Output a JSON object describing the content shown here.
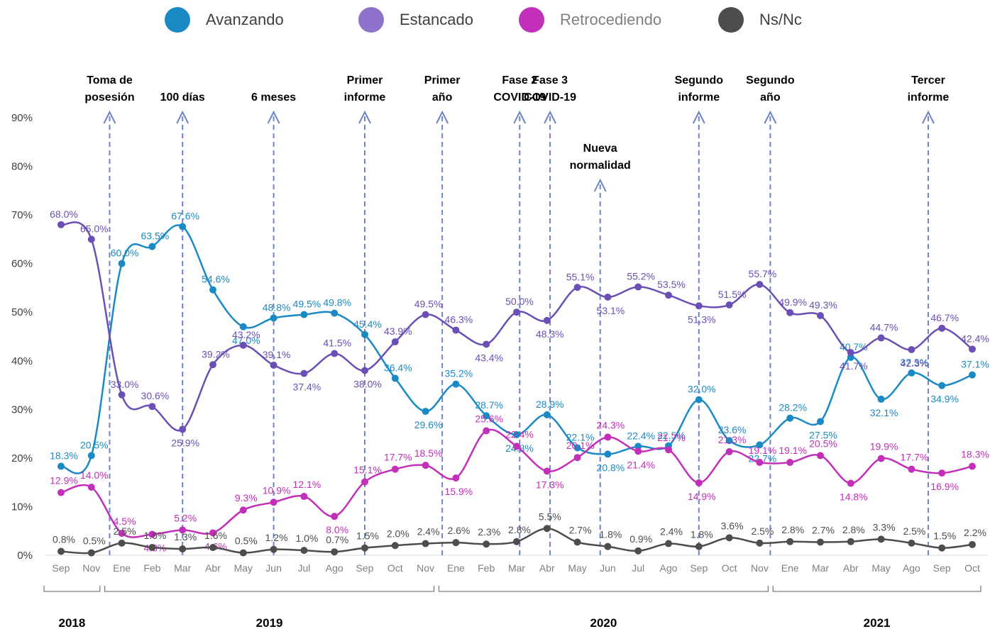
{
  "chart_data": {
    "type": "line",
    "x": [
      "Sep",
      "Nov",
      "Ene",
      "Feb",
      "Mar",
      "Abr",
      "May",
      "Jun",
      "Jul",
      "Ago",
      "Sep",
      "Oct",
      "Nov",
      "Ene",
      "Feb",
      "Mar",
      "Abr",
      "May",
      "Jun",
      "Jul",
      "Ago",
      "Sep",
      "Oct",
      "Nov",
      "Ene",
      "Mar",
      "Abr",
      "May",
      "Ago",
      "Sep",
      "Oct"
    ],
    "years": [
      {
        "label": "2018",
        "from": 0,
        "to": 1
      },
      {
        "label": "2019",
        "from": 2,
        "to": 12
      },
      {
        "label": "2020",
        "from": 13,
        "to": 23
      },
      {
        "label": "2021",
        "from": 24,
        "to": 30
      }
    ],
    "ylim": [
      0,
      90
    ],
    "yticks": [
      "0%",
      "10%",
      "20%",
      "30%",
      "40%",
      "50%",
      "60%",
      "70%",
      "80%",
      "90%"
    ],
    "series": [
      {
        "name": "Avanzando",
        "color": "#1b8ac4",
        "values": [
          18.3,
          20.5,
          60.0,
          63.5,
          67.6,
          54.6,
          47.0,
          48.8,
          49.5,
          49.8,
          45.4,
          36.4,
          29.6,
          35.2,
          28.7,
          24.8,
          28.9,
          22.1,
          20.8,
          22.4,
          22.5,
          32.0,
          23.6,
          22.7,
          28.2,
          27.5,
          40.7,
          32.1,
          37.5,
          34.9,
          37.1
        ],
        "labels": [
          "18.3%",
          "20.5%",
          "60.0%",
          "63.5%",
          "67.6%",
          "54.6%",
          "47.0%",
          "48.8%",
          "49.5%",
          "49.8%",
          "45.4%",
          "36.4%",
          "29.6%",
          "35.2%",
          "28.7%",
          "24.8%",
          "28.9%",
          "22.1%",
          "20.8%",
          "22.4%",
          "22.5%",
          "32.0%",
          "23.6%",
          "22.7%",
          "28.2%",
          "27.5%",
          "40.7%",
          "32.1%",
          "37.5%",
          "34.9%",
          "37.1%"
        ]
      },
      {
        "name": "Estancado",
        "color": "#6b4fb5",
        "values": [
          68.0,
          65.0,
          33.0,
          30.6,
          25.9,
          39.2,
          43.2,
          39.1,
          37.4,
          41.5,
          38.0,
          43.9,
          49.5,
          46.3,
          43.4,
          50.0,
          48.3,
          55.1,
          53.1,
          55.2,
          53.5,
          51.3,
          51.5,
          55.7,
          49.9,
          49.3,
          41.7,
          44.7,
          42.3,
          46.7,
          42.4
        ],
        "labels": [
          "68.0%",
          "65.0%",
          "33.0%",
          "30.6%",
          "25.9%",
          "39.2%",
          "43.2%",
          "39.1%",
          "37.4%",
          "41.5%",
          "38.0%",
          "43.9%",
          "49.5%",
          "46.3%",
          "43.4%",
          "50.0%",
          "48.3%",
          "55.1%",
          "53.1%",
          "55.2%",
          "53.5%",
          "51.3%",
          "51.5%",
          "55.7%",
          "49.9%",
          "49.3%",
          "41.7%",
          "44.7%",
          "42.3%",
          "46.7%",
          "42.4%"
        ]
      },
      {
        "name": "Retrocediendo",
        "color": "#c22fb8",
        "values": [
          12.9,
          14.0,
          4.5,
          4.3,
          5.2,
          4.6,
          9.3,
          10.9,
          12.1,
          8.0,
          15.1,
          17.7,
          18.5,
          15.9,
          25.6,
          22.4,
          17.3,
          20.1,
          24.3,
          21.4,
          21.7,
          14.9,
          21.3,
          19.1,
          19.1,
          20.5,
          14.8,
          19.9,
          17.7,
          16.9,
          18.3
        ],
        "labels": [
          "12.9%",
          "14.0%",
          "4.5%",
          "4.3%",
          "5.2%",
          "4.6%",
          "9.3%",
          "10.9%",
          "12.1%",
          "8.0%",
          "15.1%",
          "17.7%",
          "18.5%",
          "15.9%",
          "25.6%",
          "22.4%",
          "17.3%",
          "20.1%",
          "24.3%",
          "21.4%",
          "21.7%",
          "14.9%",
          "21.3%",
          "19.1%",
          "19.1%",
          "20.5%",
          "14.8%",
          "19.9%",
          "17.7%",
          "16.9%",
          "18.3%"
        ]
      },
      {
        "name": "Ns/Nc",
        "color": "#4d4d4d",
        "values": [
          0.8,
          0.5,
          2.5,
          1.6,
          1.3,
          1.6,
          0.5,
          1.2,
          1.0,
          0.7,
          1.5,
          2.0,
          2.4,
          2.6,
          2.3,
          2.8,
          5.5,
          2.7,
          1.8,
          0.9,
          2.4,
          1.8,
          3.6,
          2.5,
          2.8,
          2.7,
          2.8,
          3.3,
          2.5,
          1.5,
          2.2
        ],
        "labels": [
          "0.8%",
          "0.5%",
          "2.5%",
          "1.6%",
          "1.3%",
          "1.6%",
          "0.5%",
          "1.2%",
          "1.0%",
          "0.7%",
          "1.5%",
          "2.0%",
          "2.4%",
          "2.6%",
          "2.3%",
          "2.8%",
          "5.5%",
          "2.7%",
          "1.8%",
          "0.9%",
          "2.4%",
          "1.8%",
          "3.6%",
          "2.5%",
          "2.8%",
          "2.7%",
          "2.8%",
          "3.3%",
          "2.5%",
          "1.5%",
          "2.2%"
        ]
      }
    ],
    "events": [
      {
        "lines": [
          "Toma de",
          "posesión"
        ],
        "at": 1.6,
        "top": 90
      },
      {
        "lines": [
          "100 días"
        ],
        "at": 4.0,
        "top": 90
      },
      {
        "lines": [
          "6 meses"
        ],
        "at": 7.0,
        "top": 90
      },
      {
        "lines": [
          "Primer",
          "informe"
        ],
        "at": 10.0,
        "top": 90
      },
      {
        "lines": [
          "Primer",
          "año"
        ],
        "at": 12.55,
        "top": 90
      },
      {
        "lines": [
          "Fase 2",
          "COVID-19"
        ],
        "at": 15.1,
        "top": 90
      },
      {
        "lines": [
          "Fase 3",
          "COVID-19"
        ],
        "at": 16.1,
        "top": 90
      },
      {
        "lines": [
          "Nueva",
          "normalidad"
        ],
        "at": 17.75,
        "top": 76
      },
      {
        "lines": [
          "Segundo",
          "informe"
        ],
        "at": 21.0,
        "top": 90
      },
      {
        "lines": [
          "Segundo",
          "año"
        ],
        "at": 23.35,
        "top": 90
      },
      {
        "lines": [
          "Tercer",
          "informe"
        ],
        "at": 28.55,
        "top": 90
      }
    ],
    "grid": false,
    "legend": "top"
  }
}
